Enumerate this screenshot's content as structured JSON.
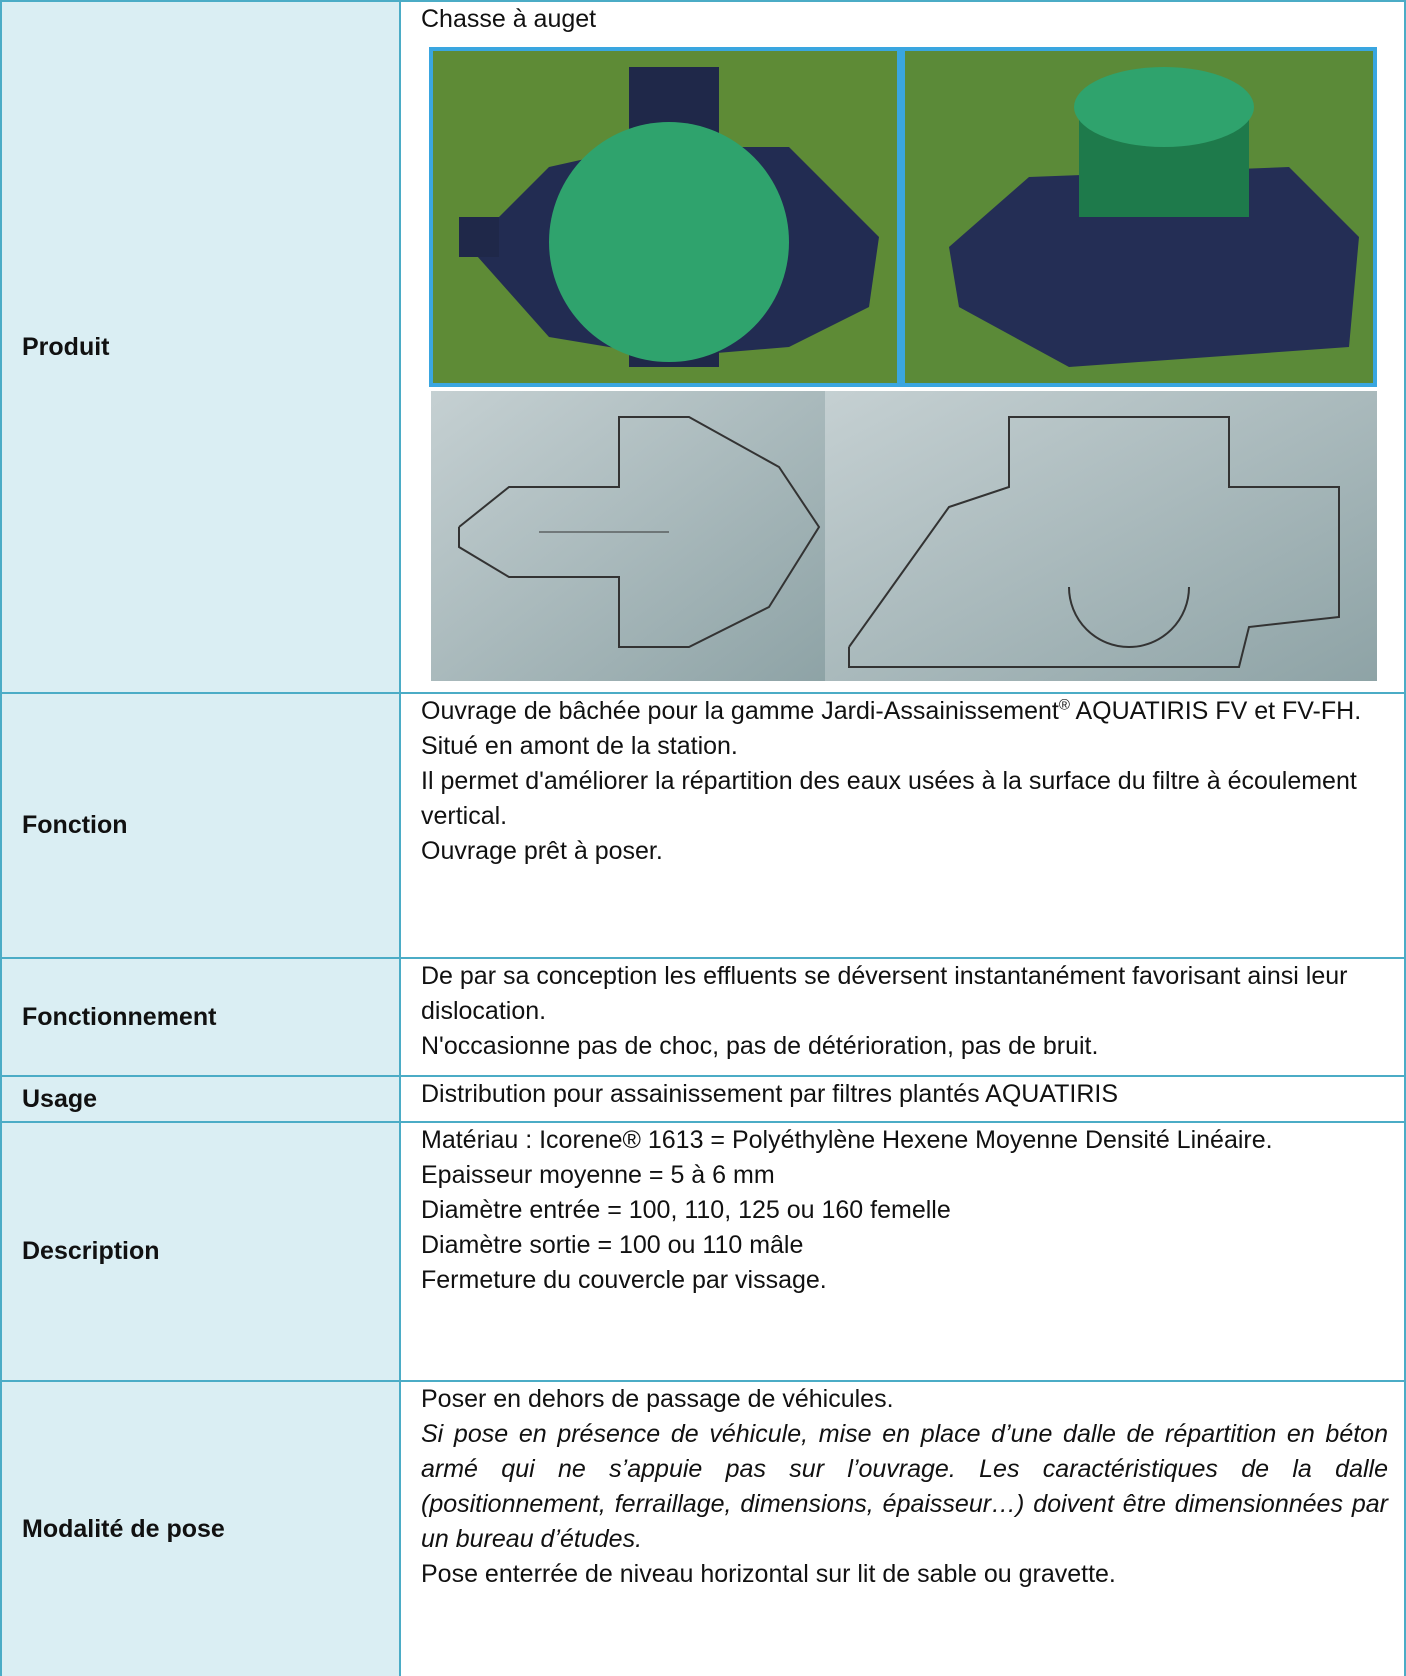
{
  "table": {
    "rows": [
      {
        "label": "Produit",
        "paragraphs": [
          "Chasse à auget"
        ]
      },
      {
        "label": "Fonction",
        "paragraphs": [
          {
            "parts": [
              "Ouvrage de bâchée pour la gamme Jardi-Assainissement",
              "®",
              " AQUATIRIS FV et FV-FH."
            ]
          },
          "Situé en amont de la station.",
          "Il permet d'améliorer la répartition des eaux usées à la surface du filtre à écoulement vertical.",
          "Ouvrage prêt à poser."
        ]
      },
      {
        "label": "Fonctionnement",
        "paragraphs": [
          "De par sa conception les effluents se déversent instantanément favorisant ainsi leur dislocation.",
          "N'occasionne pas de choc, pas de détérioration, pas de bruit."
        ]
      },
      {
        "label": "Usage",
        "paragraphs": [
          "Distribution pour assainissement par filtres plantés AQUATIRIS"
        ]
      },
      {
        "label": "Description",
        "paragraphs": [
          "Matériau : Icorene® 1613 = Polyéthylène Hexene Moyenne Densité Linéaire.",
          "Epaisseur moyenne = 5 à 6 mm",
          "Diamètre entrée = 100, 110, 125 ou 160 femelle",
          "Diamètre sortie = 100 ou 110 mâle",
          "Fermeture du couvercle par vissage."
        ]
      },
      {
        "label": "Modalité de pose",
        "paragraphs": [
          "Poser en dehors de passage de véhicules.",
          {
            "italic": "Si pose en présence de véhicule, mise en place d’une dalle de répartition en béton armé qui ne s’appuie pas sur l’ouvrage. Les caractéristiques de la dalle (positionnement, ferraillage, dimensions, épaisseur…) doivent être dimensionnées par un bureau d’études."
          },
          "Pose enterrée de niveau horizontal sur lit de sable ou gravette."
        ]
      }
    ]
  }
}
